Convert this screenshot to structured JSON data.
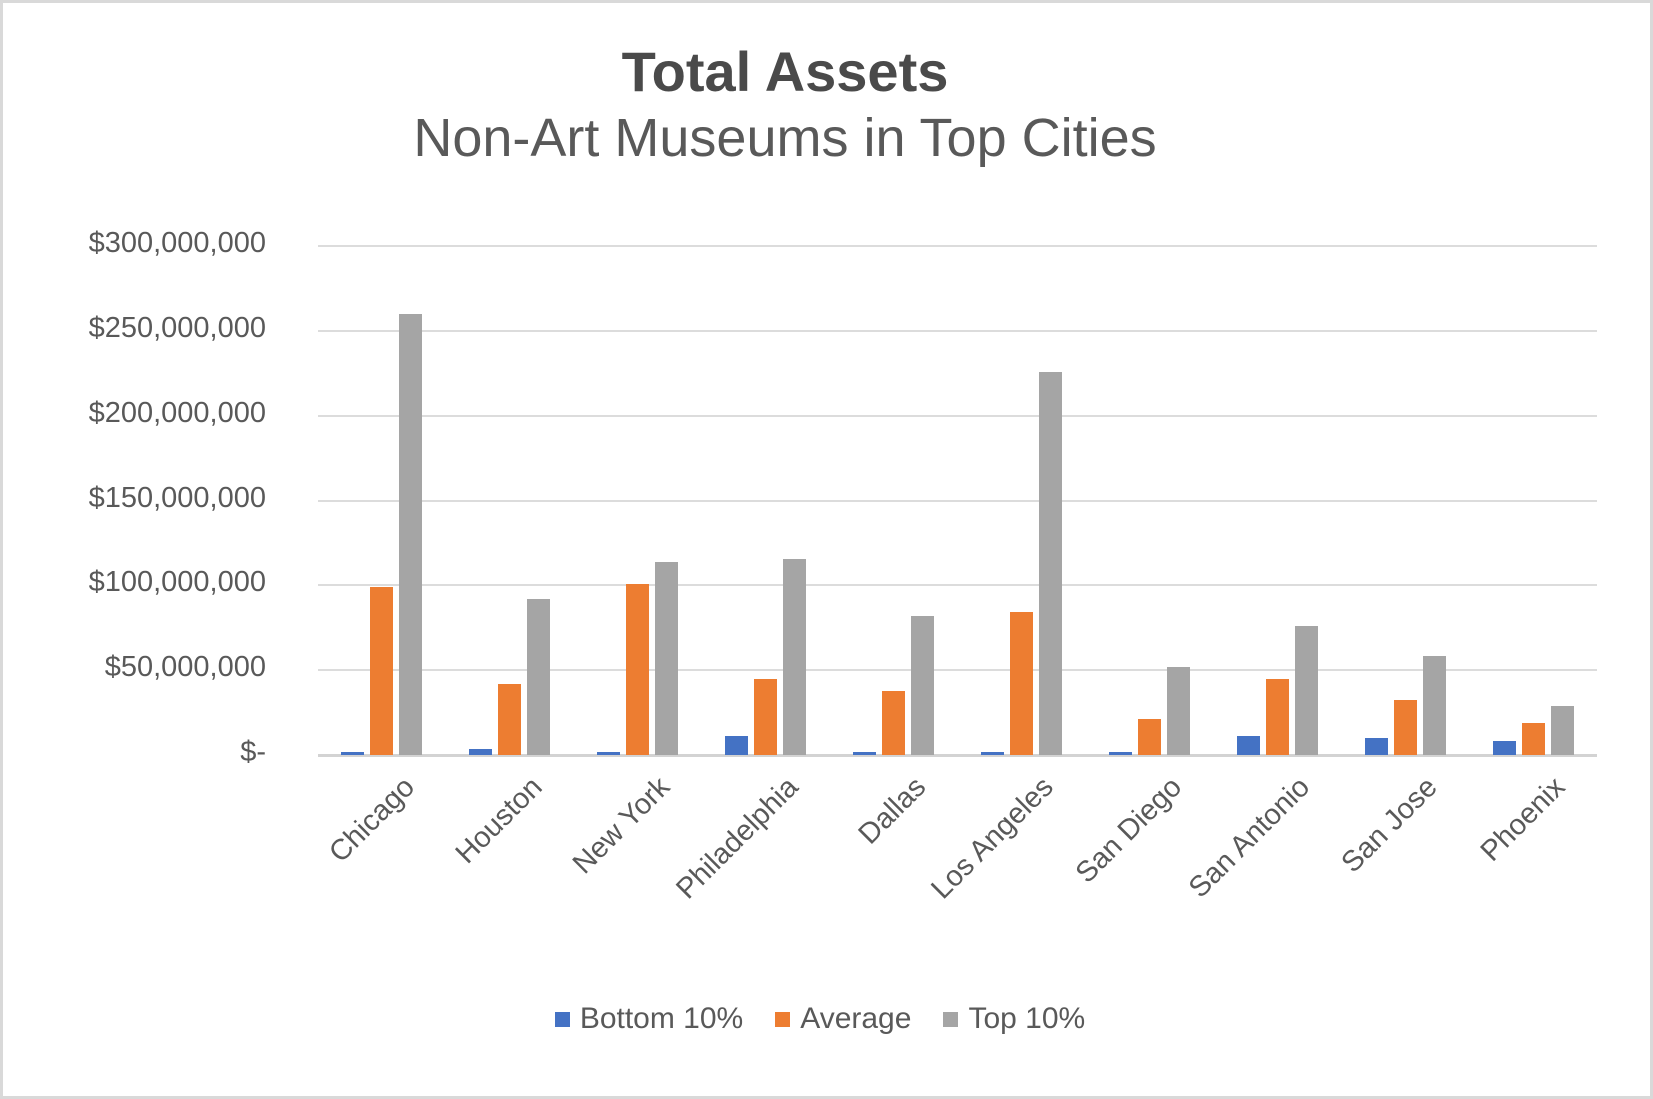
{
  "window": {
    "background": "#ffffff",
    "border_color": "#d9d9d9"
  },
  "chart_data": {
    "type": "bar",
    "title": "Total Assets",
    "subtitle": "Non-Art Museums in Top Cities",
    "categories": [
      "Chicago",
      "Houston",
      "New York",
      "Philadelphia",
      "Dallas",
      "Los Angeles",
      "San Diego",
      "San Antonio",
      "San Jose",
      "Phoenix"
    ],
    "series": [
      {
        "name": "Bottom 10%",
        "color": "#4472c4",
        "values": [
          1500000,
          3500000,
          2000000,
          11000000,
          2000000,
          1500000,
          1500000,
          11000000,
          10000000,
          8500000
        ]
      },
      {
        "name": "Average",
        "color": "#ed7d31",
        "values": [
          99000000,
          42000000,
          100500000,
          44500000,
          38000000,
          84500000,
          21000000,
          45000000,
          32500000,
          19000000
        ]
      },
      {
        "name": "Top 10%",
        "color": "#a5a5a5",
        "values": [
          260000000,
          92000000,
          113500000,
          115500000,
          82000000,
          226000000,
          52000000,
          76000000,
          58500000,
          29000000
        ]
      }
    ],
    "ylim": [
      0,
      300000000
    ],
    "y_tick_step": 50000000,
    "y_tick_labels": [
      "$-",
      "$50,000,000",
      "$100,000,000",
      "$150,000,000",
      "$200,000,000",
      "$250,000,000",
      "$300,000,000"
    ],
    "grid": true,
    "gridline_color": "#dcdcdc",
    "axis_line_color": "#d3d3d3",
    "text_color": "#595959",
    "legend_position": "bottom"
  }
}
